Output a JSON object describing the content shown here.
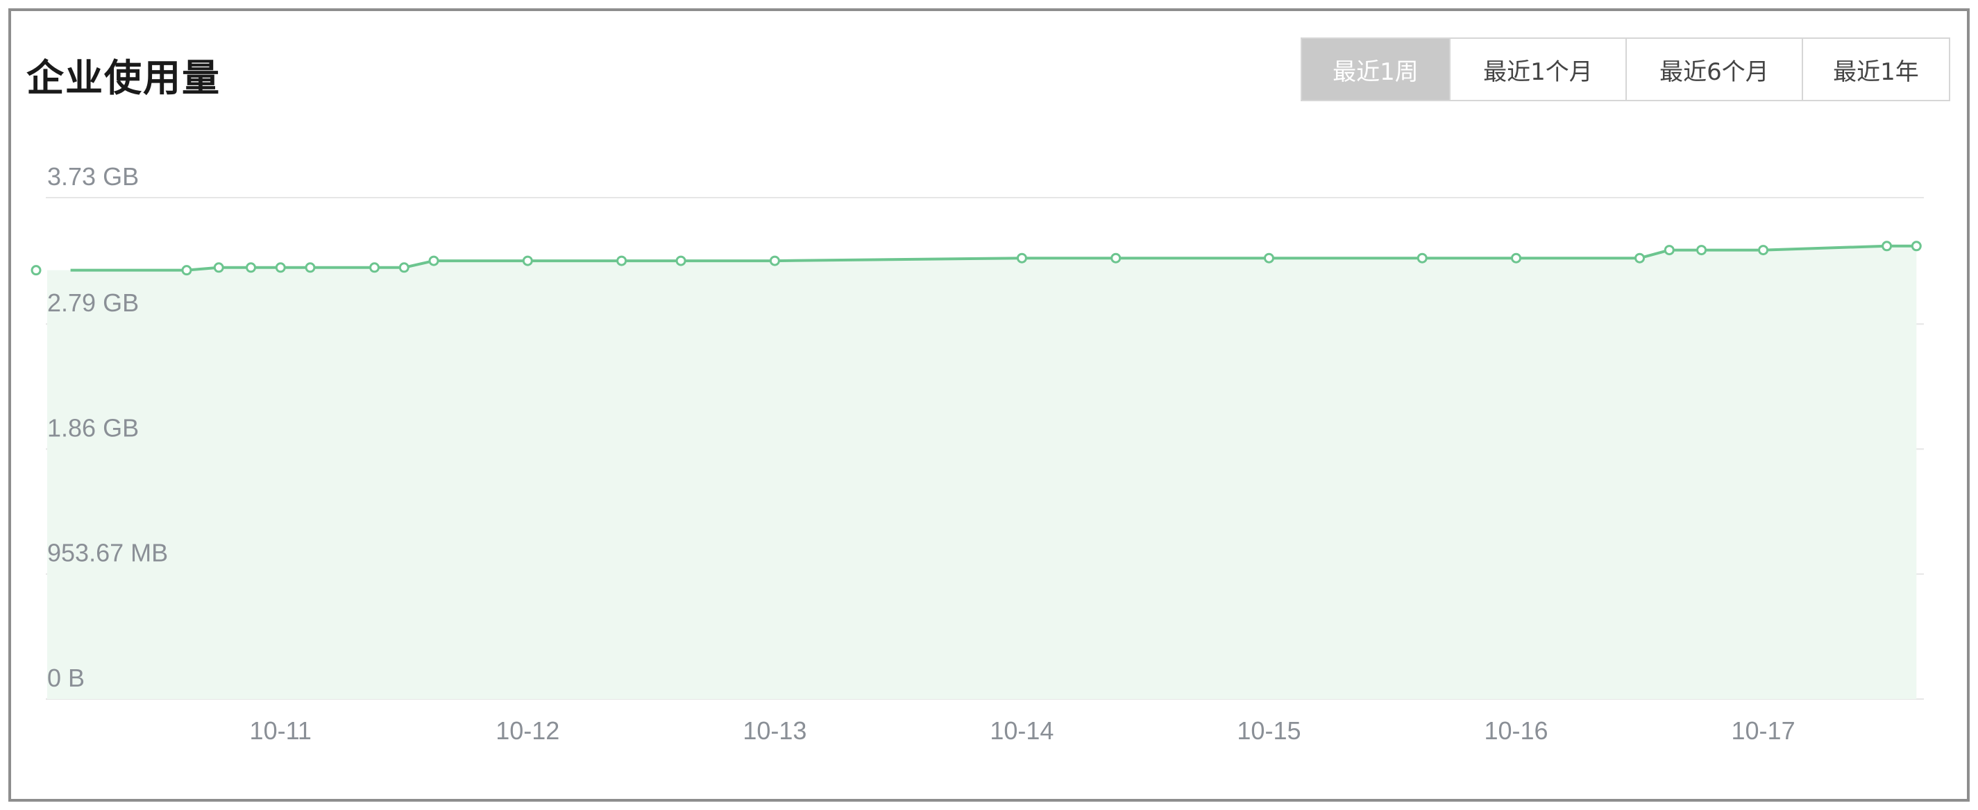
{
  "card": {
    "title": "企业使用量"
  },
  "range_buttons": [
    {
      "label": "最近1周",
      "active": true
    },
    {
      "label": "最近1个月",
      "active": false
    },
    {
      "label": "最近6个月",
      "active": false
    },
    {
      "label": "最近1年",
      "active": false
    }
  ],
  "colors": {
    "line": "#6cc58f",
    "area": "#eef8f1",
    "grid": "#e6e6e6",
    "point_fill": "#ffffff"
  },
  "chart_data": {
    "type": "area",
    "title": "",
    "xlabel": "",
    "ylabel": "",
    "y_ticks": [
      "0 B",
      "953.67 MB",
      "1.86 GB",
      "2.79 GB",
      "3.73 GB"
    ],
    "y_tick_values_gb": [
      0,
      0.93,
      1.86,
      2.79,
      3.73
    ],
    "x_ticks": [
      "10-11",
      "10-12",
      "10-13",
      "10-14",
      "10-15",
      "10-16",
      "10-17"
    ],
    "xlim_days": [
      10.05,
      17.65
    ],
    "ylim_gb": [
      0,
      3.73
    ],
    "grid": true,
    "series": [
      {
        "unit": "GB",
        "points": [
          {
            "day": 10.15,
            "value": 3.19
          },
          {
            "day": 10.62,
            "value": 3.19
          },
          {
            "day": 10.75,
            "value": 3.21
          },
          {
            "day": 10.88,
            "value": 3.21
          },
          {
            "day": 11.0,
            "value": 3.21
          },
          {
            "day": 11.12,
            "value": 3.21
          },
          {
            "day": 11.38,
            "value": 3.21
          },
          {
            "day": 11.5,
            "value": 3.21
          },
          {
            "day": 11.62,
            "value": 3.26
          },
          {
            "day": 12.0,
            "value": 3.26
          },
          {
            "day": 12.38,
            "value": 3.26
          },
          {
            "day": 12.62,
            "value": 3.26
          },
          {
            "day": 13.0,
            "value": 3.26
          },
          {
            "day": 14.0,
            "value": 3.28
          },
          {
            "day": 14.38,
            "value": 3.28
          },
          {
            "day": 15.0,
            "value": 3.28
          },
          {
            "day": 15.62,
            "value": 3.28
          },
          {
            "day": 16.0,
            "value": 3.28
          },
          {
            "day": 16.5,
            "value": 3.28
          },
          {
            "day": 16.62,
            "value": 3.34
          },
          {
            "day": 16.75,
            "value": 3.34
          },
          {
            "day": 17.0,
            "value": 3.34
          },
          {
            "day": 17.5,
            "value": 3.37
          },
          {
            "day": 17.62,
            "value": 3.37
          }
        ]
      }
    ]
  }
}
